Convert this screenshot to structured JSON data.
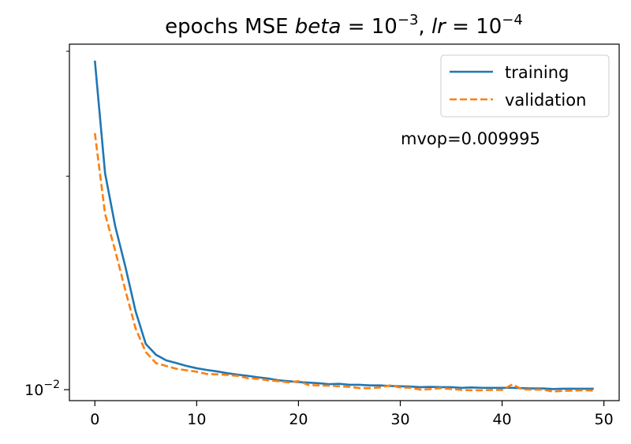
{
  "chart_data": {
    "type": "line",
    "title": {
      "prefix": "epochs MSE ",
      "beta_var": "beta",
      "beta_base": "10",
      "beta_exp": "−3",
      "sep": ", ",
      "lr_var": "lr",
      "lr_base": "10",
      "lr_exp": "−4"
    },
    "xlabel": "",
    "ylabel": "",
    "xlim": [
      -2.5,
      51.5
    ],
    "ylim": [
      0.00965,
      0.0307
    ],
    "yscale": "log",
    "grid": false,
    "legend_position": "upper right",
    "x_ticks": [
      0,
      10,
      20,
      30,
      40,
      50
    ],
    "x_tick_labels": [
      "0",
      "10",
      "20",
      "30",
      "40",
      "50"
    ],
    "y_major_tick": {
      "value": 0.01,
      "base": "10",
      "exp": "−2"
    },
    "y_minor_ticks": [
      0.02,
      0.03
    ],
    "annotation": "mvop=0.009995",
    "series": [
      {
        "name": "training",
        "color": "#1f77b4",
        "dash": "solid",
        "x": [
          0,
          1,
          2,
          3,
          4,
          5,
          6,
          7,
          8,
          9,
          10,
          11,
          12,
          13,
          14,
          15,
          16,
          17,
          18,
          19,
          20,
          21,
          22,
          23,
          24,
          25,
          26,
          27,
          28,
          29,
          30,
          31,
          32,
          33,
          34,
          35,
          36,
          37,
          38,
          39,
          40,
          41,
          42,
          43,
          44,
          45,
          46,
          47,
          48,
          49
        ],
        "y": [
          0.0291,
          0.0202,
          0.017,
          0.0149,
          0.0129,
          0.0116,
          0.0112,
          0.011,
          0.0109,
          0.0108,
          0.01072,
          0.01066,
          0.01061,
          0.01055,
          0.0105,
          0.01046,
          0.01041,
          0.01037,
          0.01031,
          0.01028,
          0.01025,
          0.01023,
          0.01021,
          0.01018,
          0.01019,
          0.01016,
          0.01016,
          0.01014,
          0.01014,
          0.01012,
          0.01011,
          0.0101,
          0.01008,
          0.01009,
          0.01008,
          0.01008,
          0.01006,
          0.01007,
          0.01006,
          0.01006,
          0.01006,
          0.01006,
          0.01005,
          0.01004,
          0.01004,
          0.01002,
          0.01003,
          0.01003,
          0.01003,
          0.01003
        ]
      },
      {
        "name": "validation",
        "color": "#ff7f0e",
        "dash": "dashed",
        "x": [
          0,
          1,
          2,
          3,
          4,
          5,
          6,
          7,
          8,
          9,
          10,
          11,
          12,
          13,
          14,
          15,
          16,
          17,
          18,
          19,
          20,
          21,
          22,
          23,
          24,
          25,
          26,
          27,
          28,
          29,
          30,
          31,
          32,
          33,
          34,
          35,
          36,
          37,
          38,
          39,
          40,
          41,
          42,
          43,
          44,
          45,
          46,
          47,
          48,
          49
        ],
        "y": [
          0.023,
          0.0177,
          0.0157,
          0.0138,
          0.0122,
          0.0113,
          0.0109,
          0.0108,
          0.0107,
          0.01065,
          0.0106,
          0.01052,
          0.01051,
          0.01049,
          0.01046,
          0.01038,
          0.01036,
          0.01031,
          0.01028,
          0.01024,
          0.01028,
          0.01015,
          0.01014,
          0.01013,
          0.01011,
          0.01009,
          0.01005,
          0.01005,
          0.01007,
          0.01014,
          0.01007,
          0.01006,
          0.01,
          0.01002,
          0.01005,
          0.01002,
          0.00999,
          0.00998,
          0.00998,
          0.00999,
          0.00999,
          0.01017,
          0.01001,
          0.01,
          0.01,
          0.00994,
          0.00996,
          0.00997,
          0.00998,
          0.00997
        ]
      }
    ]
  }
}
